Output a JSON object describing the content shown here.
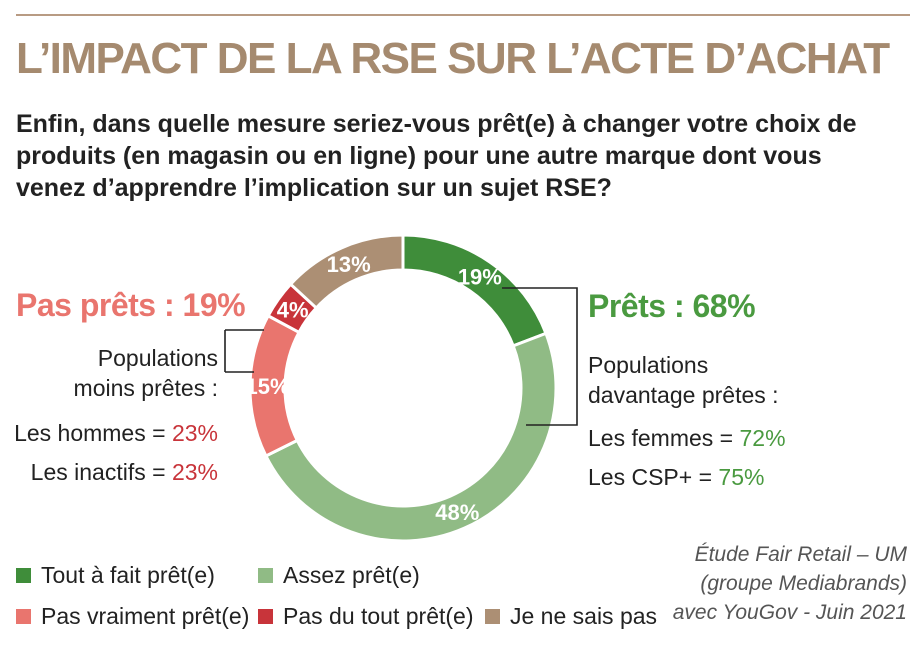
{
  "title": "L’IMPACT DE LA RSE SUR L’ACTE D’ACHAT",
  "question": "Enfin, dans quelle mesure seriez-vous prêt(e) à changer votre choix de produits (en magasin ou en ligne) pour une autre marque dont vous venez d’apprendre l’implication sur un sujet RSE?",
  "left": {
    "headline": "Pas prêts : 19%",
    "sub_line1": "Populations",
    "sub_line2": "moins prêtes :",
    "stat1_label": "Les hommes = ",
    "stat1_value": "23%",
    "stat2_label": "Les inactifs = ",
    "stat2_value": "23%"
  },
  "right": {
    "headline": "Prêts : 68%",
    "sub_line1": "Populations",
    "sub_line2": "davantage prêtes :",
    "stat1_label": "Les femmes = ",
    "stat1_value": "72%",
    "stat2_label": "Les CSP+ = ",
    "stat2_value": "75%"
  },
  "source": {
    "line1": "Étude Fair Retail – UM",
    "line2": "(groupe Mediabrands)",
    "line3": "avec YouGov - Juin 2021"
  },
  "colors": {
    "title": "#a58a6f",
    "rule": "#b89b83",
    "pas_prets": "#e9756e",
    "prets": "#4a9a40"
  },
  "chart_data": {
    "type": "pie",
    "donut": true,
    "slices": [
      {
        "label": "Tout à fait prêt(e)",
        "value": 19,
        "display": "19%",
        "color": "#3f8d3a"
      },
      {
        "label": "Assez prêt(e)",
        "value": 48,
        "display": "48%",
        "color": "#90bb85"
      },
      {
        "label": "Pas vraiment prêt(e)",
        "value": 15,
        "display": "15%",
        "color": "#e9756e"
      },
      {
        "label": "Pas du tout prêt(e)",
        "value": 4,
        "display": "4%",
        "color": "#c8343a"
      },
      {
        "label": "Je ne sais pas",
        "value": 13,
        "display": "13%",
        "color": "#ac8f74"
      }
    ],
    "start": "top",
    "direction": "clockwise",
    "legend_position": "bottom-left"
  }
}
